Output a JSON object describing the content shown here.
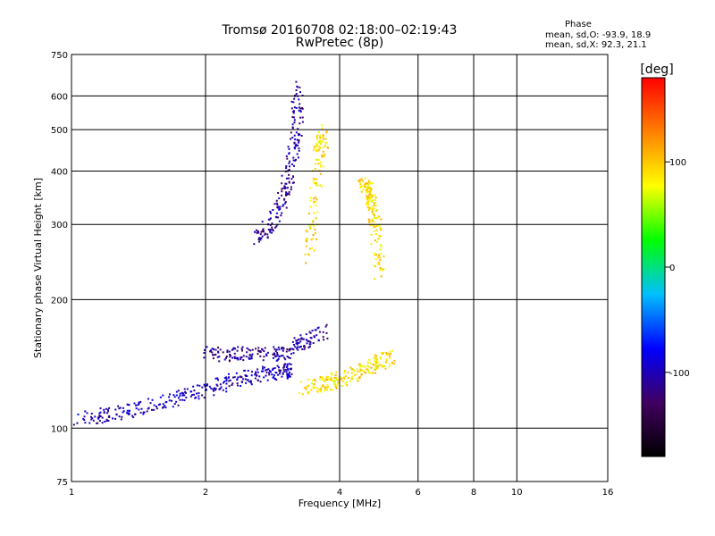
{
  "header": {
    "title": "Tromsø 20160708 02:18:00–02:19:43",
    "subtitle": "RwPretec (8p)",
    "phase_heading": "Phase",
    "phase_o": "mean, sd,O: -93.9, 18.9",
    "phase_x": "mean, sd,X: 92.3, 21.1"
  },
  "chart_data": {
    "type": "scatter",
    "title": "Tromsø 20160708 02:18:00–02:19:43",
    "subtitle": "RwPretec (8p)",
    "xlabel": "Frequency [MHz]",
    "ylabel": "Stationary phase Virtual Height [km]",
    "x_scale": "log",
    "y_scale": "log",
    "xlim": [
      1,
      16
    ],
    "ylim": [
      75,
      750
    ],
    "x_ticks": [
      1,
      2,
      4,
      6,
      8,
      10,
      16
    ],
    "y_ticks": [
      75,
      100,
      200,
      300,
      400,
      500,
      600,
      750
    ],
    "grid": true,
    "colorbar": {
      "label": "[deg]",
      "range": [
        -180,
        180
      ],
      "ticks": [
        -100,
        0,
        100
      ],
      "colors": [
        "#000000",
        "#400060",
        "#0000ff",
        "#00c0ff",
        "#00ff00",
        "#ffff00",
        "#ff8000",
        "#ff0000"
      ]
    },
    "series": [
      {
        "mode": "O",
        "segments": [
          {
            "x": [
              1.0,
              1.2,
              1.4,
              1.7,
              2.0,
              2.3,
              2.6,
              2.9,
              3.1
            ],
            "y": [
              105,
              108,
              112,
              118,
              124,
              130,
              134,
              136,
              137
            ],
            "phase_mean": -100
          },
          {
            "x": [
              2.0,
              2.3,
              2.6,
              3.0,
              3.3,
              3.7
            ],
            "y": [
              150,
              150,
              150,
              150,
              160,
              170
            ],
            "phase_mean": -110
          },
          {
            "x": [
              2.6,
              2.8,
              3.0,
              3.1,
              3.2,
              3.2
            ],
            "y": [
              280,
              300,
              350,
              420,
              520,
              640
            ],
            "phase_mean": -110
          }
        ]
      },
      {
        "mode": "X",
        "segments": [
          {
            "x": [
              3.3,
              3.7,
              4.0,
              4.4,
              4.8,
              5.2
            ],
            "y": [
              125,
              128,
              131,
              136,
              142,
              148
            ],
            "phase_mean": 90
          },
          {
            "x": [
              3.4,
              3.5,
              3.6,
              3.7
            ],
            "y": [
              250,
              350,
              450,
              500
            ],
            "phase_mean": 90
          },
          {
            "x": [
              4.5,
              4.6,
              4.7,
              4.8,
              4.9
            ],
            "y": [
              380,
              360,
              340,
              300,
              230
            ],
            "phase_mean": 90
          }
        ]
      }
    ]
  }
}
